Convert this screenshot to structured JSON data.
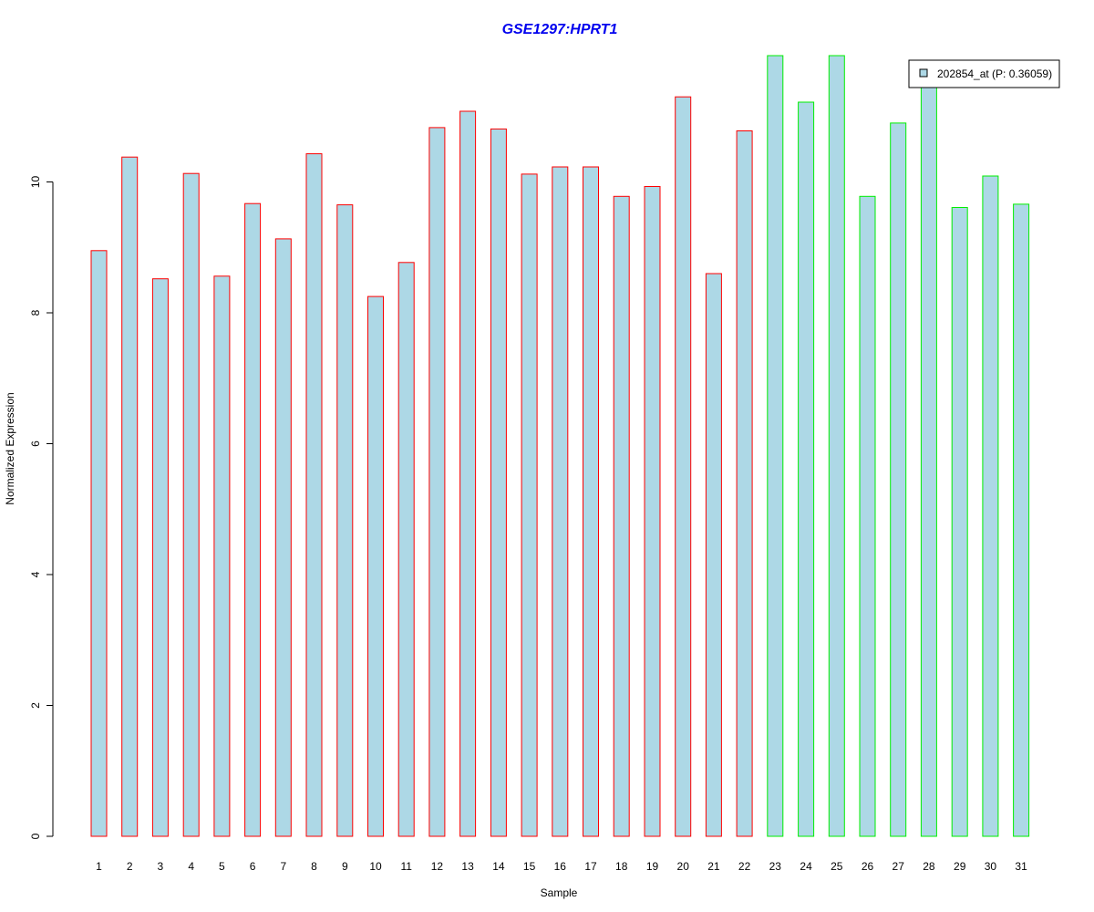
{
  "chart_data": {
    "type": "bar",
    "title": "GSE1297:HPRT1",
    "title_color": "#0000ee",
    "xlabel": "Sample",
    "ylabel": "Normalized Expression",
    "ylim": [
      0,
      12
    ],
    "yticks": [
      0,
      2,
      4,
      6,
      8,
      10
    ],
    "grid": false,
    "categories": [
      "1",
      "2",
      "3",
      "4",
      "5",
      "6",
      "7",
      "8",
      "9",
      "10",
      "11",
      "12",
      "13",
      "14",
      "15",
      "16",
      "17",
      "18",
      "19",
      "20",
      "21",
      "22",
      "23",
      "24",
      "25",
      "26",
      "27",
      "28",
      "29",
      "30",
      "31"
    ],
    "values": [
      8.95,
      10.38,
      8.52,
      10.13,
      8.56,
      9.67,
      9.13,
      10.43,
      9.65,
      8.25,
      8.77,
      10.83,
      11.08,
      10.81,
      10.12,
      10.23,
      10.23,
      9.78,
      9.93,
      11.3,
      8.6,
      10.78,
      11.93,
      11.22,
      11.93,
      9.78,
      10.9,
      11.52,
      9.61,
      10.09,
      9.66
    ],
    "groups": [
      {
        "samples": "1-22",
        "border_color": "#ff0000"
      },
      {
        "samples": "23-31",
        "border_color": "#00ee00"
      }
    ],
    "bar_fill": "#add8e6",
    "legend": {
      "position": "top-right",
      "label": "202854_at (P: 0.36059)"
    }
  }
}
